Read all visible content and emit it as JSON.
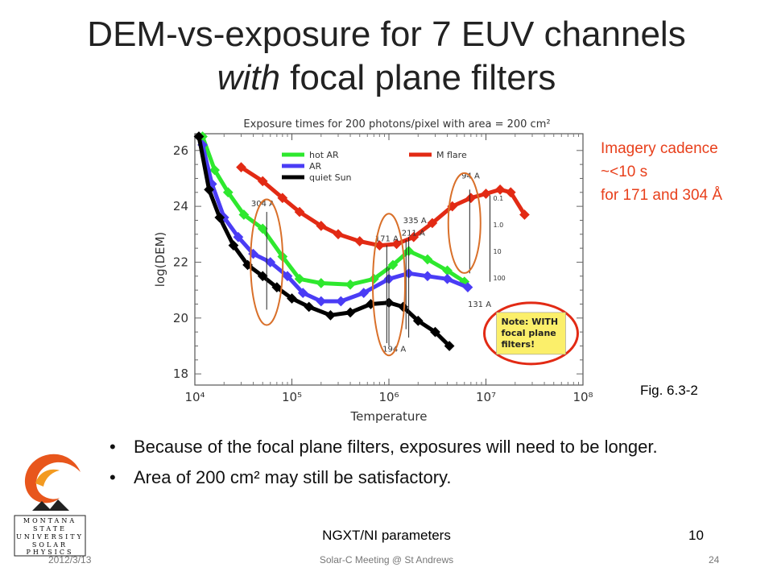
{
  "slide": {
    "title_line1": "DEM-vs-exposure for 7 EUV channels",
    "title_line2_italic": "with",
    "title_line2_rest": " focal plane filters",
    "cadence_lines": [
      "Imagery cadence",
      "~<10 s",
      "for 171 and 304 Å"
    ],
    "fig_label": "Fig. 6.3-2",
    "bullets": [
      "Because of the focal plane filters, exposures will need to be longer.",
      "Area of 200 cm² may still be satisfactory."
    ],
    "footer_center": "NGXT/NI parameters",
    "footer_number": "10",
    "date": "2012/3/13",
    "meeting": "Solar-C Meeting @ St Andrews",
    "page": "24",
    "logo_lines": [
      "MONTANA",
      "STATE",
      "UNIVERSITY",
      "SOLAR",
      "PHYSICS"
    ],
    "colors": {
      "cadence": "#e8401c",
      "green": "#2ee82e",
      "blue": "#4a3cf5",
      "black": "#000000",
      "red": "#e22a14",
      "circle": "#d9702a"
    }
  },
  "chart_data": {
    "type": "line",
    "title": "Exposure times for 200 photons/pixel with area = 200 cm²",
    "xlabel": "Temperature",
    "ylabel": "log(DEM)",
    "xscale": "log",
    "xlim": [
      10000,
      100000000
    ],
    "ylim": [
      17.6,
      26.6
    ],
    "x_ticks": [
      "10⁴",
      "10⁵",
      "10⁶",
      "10⁷",
      "10⁸"
    ],
    "y_ticks": [
      18,
      20,
      22,
      24,
      26
    ],
    "grid": false,
    "legend": "top",
    "series": [
      {
        "name": "hot AR",
        "color": "#2ee82e",
        "points": [
          [
            12000,
            26.5
          ],
          [
            16000,
            25.3
          ],
          [
            22000,
            24.5
          ],
          [
            32000,
            23.7
          ],
          [
            50000,
            23.2
          ],
          [
            80000,
            22.2
          ],
          [
            120000,
            21.4
          ],
          [
            200000,
            21.25
          ],
          [
            400000,
            21.2
          ],
          [
            700000,
            21.4
          ],
          [
            1100000,
            21.9
          ],
          [
            1600000,
            22.4
          ],
          [
            2500000,
            22.1
          ],
          [
            4000000,
            21.7
          ],
          [
            6000000,
            21.3
          ]
        ]
      },
      {
        "name": "AR",
        "color": "#4a3cf5",
        "points": [
          [
            12000,
            26.2
          ],
          [
            15000,
            24.8
          ],
          [
            20000,
            23.6
          ],
          [
            28000,
            22.9
          ],
          [
            40000,
            22.3
          ],
          [
            60000,
            22.0
          ],
          [
            90000,
            21.5
          ],
          [
            130000,
            20.9
          ],
          [
            200000,
            20.6
          ],
          [
            320000,
            20.6
          ],
          [
            550000,
            20.9
          ],
          [
            1000000,
            21.4
          ],
          [
            1600000,
            21.6
          ],
          [
            2500000,
            21.5
          ],
          [
            4000000,
            21.4
          ],
          [
            6500000,
            21.1
          ]
        ]
      },
      {
        "name": "quiet Sun",
        "color": "#000000",
        "points": [
          [
            11000,
            26.5
          ],
          [
            14000,
            24.6
          ],
          [
            18000,
            23.6
          ],
          [
            25000,
            22.6
          ],
          [
            35000,
            21.9
          ],
          [
            50000,
            21.5
          ],
          [
            70000,
            21.1
          ],
          [
            100000,
            20.7
          ],
          [
            150000,
            20.4
          ],
          [
            250000,
            20.1
          ],
          [
            400000,
            20.2
          ],
          [
            650000,
            20.5
          ],
          [
            1000000,
            20.55
          ],
          [
            1400000,
            20.4
          ],
          [
            2000000,
            19.9
          ],
          [
            3000000,
            19.5
          ],
          [
            4200000,
            19.0
          ]
        ]
      },
      {
        "name": "M flare",
        "color": "#e22a14",
        "points": [
          [
            30000,
            25.4
          ],
          [
            50000,
            24.9
          ],
          [
            80000,
            24.3
          ],
          [
            120000,
            23.8
          ],
          [
            200000,
            23.3
          ],
          [
            300000,
            23.0
          ],
          [
            500000,
            22.75
          ],
          [
            800000,
            22.6
          ],
          [
            1200000,
            22.65
          ],
          [
            1800000,
            22.9
          ],
          [
            2800000,
            23.4
          ],
          [
            4500000,
            24.0
          ],
          [
            7000000,
            24.3
          ],
          [
            10000000,
            24.45
          ],
          [
            14000000,
            24.6
          ],
          [
            18000000,
            24.5
          ],
          [
            25000000,
            23.7
          ]
        ]
      }
    ],
    "annotations": [
      "304 A",
      "335 A",
      "211 A",
      "171 A",
      "94 A",
      "131 A",
      "194 A",
      "Note: WITH focal plane filters!"
    ],
    "exposure_labels": [
      "0.1",
      "1.0",
      "10",
      "100"
    ],
    "note_box": "Note: WITH focal plane filters!"
  }
}
